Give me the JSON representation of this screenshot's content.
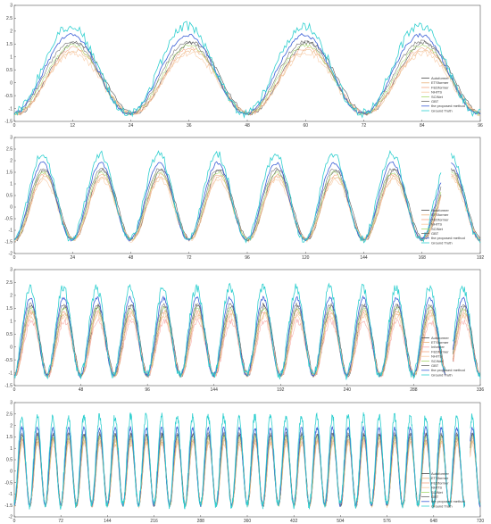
{
  "series_styles": [
    {
      "name": "Autoformer",
      "color": "#4a4a4a"
    },
    {
      "name": "ETSformer",
      "color": "#e8b07a"
    },
    {
      "name": "FEDformer",
      "color": "#f4a582"
    },
    {
      "name": "Informer",
      "color": "#f7a8a8"
    },
    {
      "name": "NHITS",
      "color": "#f8c7a0"
    },
    {
      "name": "SCINet",
      "color": "#a6d96a"
    },
    {
      "name": "GBT",
      "color": "#6a6a6a"
    },
    {
      "name": "the proposed method",
      "color": "#3b5fd6"
    },
    {
      "name": "Ground Truth",
      "color": "#2ecfcf"
    }
  ],
  "chart_data": [
    {
      "type": "line",
      "xlim": [
        0,
        96
      ],
      "ylim": [
        -1.5,
        3
      ],
      "xticks": [
        "0",
        "12",
        "24",
        "36",
        "48",
        "60",
        "72",
        "84",
        "96"
      ],
      "yticks": [
        "-1.5",
        "-1",
        "-0.5",
        "0",
        "0.5",
        "1",
        "1.5",
        "2",
        "2.5",
        "3"
      ],
      "cycles": 4,
      "legend": [
        "Autoformer",
        "ETSformer",
        "FEDformer",
        "NHITS",
        "SCINet",
        "GBT",
        "the proposed method",
        "Ground Truth"
      ],
      "legend_position": "right",
      "amplitude": {
        "Autoformer": 1.55,
        "ETSformer": 1.25,
        "FEDformer": 1.35,
        "NHITS": 1.15,
        "SCINet": 1.45,
        "GBT": 1.6,
        "the proposed method": 1.85,
        "Ground Truth": 2.2
      },
      "trough": -1.2
    },
    {
      "type": "line",
      "xlim": [
        0,
        192
      ],
      "ylim": [
        -2,
        3
      ],
      "xticks": [
        "0",
        "24",
        "48",
        "72",
        "96",
        "120",
        "144",
        "168",
        "192"
      ],
      "yticks": [
        "-2",
        "-1.5",
        "-1",
        "-0.5",
        "0",
        "0.5",
        "1",
        "1.5",
        "2",
        "2.5",
        "3"
      ],
      "cycles": 8,
      "gap": [
        176,
        180
      ],
      "legend": [
        "Autoformer",
        "ETSformer",
        "FEDformer",
        "NHITS",
        "SCINet",
        "GBT",
        "the proposed method",
        "Ground Truth"
      ],
      "legend_position": "right",
      "amplitude": {
        "Autoformer": 1.6,
        "ETSformer": 1.3,
        "FEDformer": 1.4,
        "NHITS": 1.2,
        "SCINet": 1.5,
        "GBT": 1.65,
        "the proposed method": 1.9,
        "Ground Truth": 2.3
      },
      "trough": -1.4
    },
    {
      "type": "line",
      "xlim": [
        0,
        336
      ],
      "ylim": [
        -1.5,
        3
      ],
      "xticks": [
        "0",
        "48",
        "96",
        "144",
        "192",
        "240",
        "288",
        "336"
      ],
      "yticks": [
        "-1.5",
        "-1",
        "-0.5",
        "0",
        "0.5",
        "1",
        "1.5",
        "2",
        "2.5",
        "3"
      ],
      "cycles": 14,
      "gap": [
        311,
        316
      ],
      "legend": [
        "Autoformer",
        "ETSformer",
        "Informer",
        "FEDformer",
        "NHITS",
        "SCINet",
        "GBT",
        "the proposed method",
        "Ground Truth"
      ],
      "legend_position": "right",
      "amplitude": {
        "Autoformer": 1.6,
        "ETSformer": 1.3,
        "Informer": 1.0,
        "FEDformer": 1.4,
        "NHITS": 1.2,
        "SCINet": 1.5,
        "GBT": 1.65,
        "the proposed method": 1.9,
        "Ground Truth": 2.3
      },
      "trough": -1.1
    },
    {
      "type": "line",
      "xlim": [
        0,
        720
      ],
      "ylim": [
        -2,
        3
      ],
      "xticks": [
        "0",
        "72",
        "144",
        "216",
        "288",
        "360",
        "432",
        "504",
        "576",
        "648",
        "720"
      ],
      "yticks": [
        "-2",
        "-1.5",
        "-1",
        "-0.5",
        "0",
        "0.5",
        "1",
        "1.5",
        "2",
        "2.5",
        "3"
      ],
      "cycles": 30,
      "gap": [
        696,
        704
      ],
      "legend": [
        "Autoformer",
        "ETSformer",
        "FEDformer",
        "NHITS",
        "SCINet",
        "GBT",
        "the proposed method",
        "Ground Truth"
      ],
      "legend_position": "right",
      "amplitude": {
        "Autoformer": 1.6,
        "ETSformer": 1.3,
        "FEDformer": 1.4,
        "NHITS": 1.2,
        "SCINet": 1.5,
        "GBT": 1.65,
        "the proposed method": 1.9,
        "Ground Truth": 2.4
      },
      "trough": -1.5
    }
  ]
}
